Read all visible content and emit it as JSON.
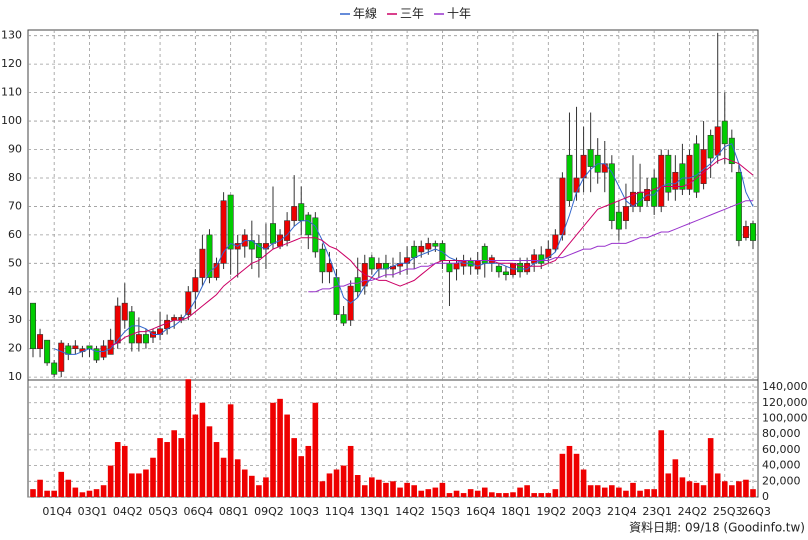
{
  "chart_data": {
    "type": "candlestick",
    "categories": [
      null,
      null,
      null,
      "01Q4",
      null,
      null,
      null,
      null,
      "03Q1",
      null,
      null,
      null,
      null,
      "04Q2",
      null,
      null,
      null,
      null,
      "05Q3",
      null,
      null,
      null,
      null,
      "06Q4",
      null,
      null,
      null,
      null,
      "08Q1",
      null,
      null,
      null,
      null,
      "09Q2",
      null,
      null,
      null,
      null,
      "10Q3",
      null,
      null,
      null,
      null,
      "11Q4",
      null,
      null,
      null,
      null,
      "13Q1",
      null,
      null,
      null,
      null,
      "14Q2",
      null,
      null,
      null,
      null,
      "15Q3",
      null,
      null,
      null,
      null,
      "16Q4",
      null,
      null,
      null,
      null,
      "18Q1",
      null,
      null,
      null,
      null,
      "19Q2",
      null,
      null,
      null,
      null,
      "20Q3",
      null,
      null,
      null,
      null,
      "21Q4",
      null,
      null,
      null,
      null,
      "23Q1",
      null,
      null,
      null,
      null,
      "24Q2",
      null,
      null,
      null,
      null,
      "25Q3",
      null,
      null,
      null,
      "26Q3"
    ],
    "open": [
      36,
      20,
      23,
      15,
      12,
      21,
      20,
      19,
      21,
      20,
      17,
      18,
      22,
      30,
      33,
      22,
      25,
      24,
      25,
      27,
      30,
      30,
      32,
      40,
      45,
      60,
      45,
      50,
      74,
      55,
      56,
      58,
      57,
      55,
      64,
      56,
      58,
      65,
      71,
      67,
      66,
      55,
      47,
      45,
      32,
      30,
      45,
      42,
      52,
      48,
      50,
      48,
      49,
      50,
      56,
      54,
      55,
      57,
      57,
      50,
      48,
      49,
      51,
      48,
      56,
      50,
      49,
      47,
      46,
      50,
      47,
      50,
      53,
      52,
      55,
      60,
      88,
      75,
      80,
      90,
      88,
      82,
      85,
      68,
      65,
      70,
      75,
      72,
      80,
      70,
      88,
      76,
      85,
      76,
      92,
      78,
      95,
      88,
      100,
      94,
      82,
      59,
      64
    ],
    "close": [
      20,
      25,
      15,
      11,
      22,
      18,
      21,
      20,
      20,
      16,
      21,
      23,
      35,
      36,
      22,
      25,
      22,
      26,
      27,
      30,
      31,
      31,
      40,
      45,
      55,
      45,
      50,
      72,
      55,
      57,
      60,
      55,
      52,
      57,
      57,
      60,
      65,
      70,
      65,
      60,
      54,
      47,
      50,
      32,
      29,
      42,
      40,
      50,
      48,
      50,
      48,
      49,
      50,
      52,
      52,
      56,
      57,
      56,
      51,
      47,
      50,
      51,
      49,
      51,
      50,
      52,
      47,
      46,
      50,
      47,
      50,
      53,
      50,
      55,
      60,
      80,
      72,
      80,
      88,
      84,
      82,
      85,
      65,
      62,
      70,
      75,
      70,
      76,
      70,
      88,
      75,
      82,
      76,
      88,
      75,
      90,
      87,
      98,
      92,
      85,
      58,
      63,
      58
    ],
    "high": [
      36,
      27,
      23,
      16,
      23,
      22,
      23,
      21,
      21,
      21,
      23,
      27,
      38,
      43,
      35,
      31,
      27,
      27,
      33,
      32,
      32,
      32,
      42,
      48,
      60,
      62,
      52,
      75,
      74,
      60,
      62,
      65,
      60,
      64,
      77,
      62,
      68,
      81,
      77,
      68,
      68,
      57,
      54,
      48,
      35,
      44,
      52,
      53,
      53,
      52,
      53,
      52,
      54,
      56,
      58,
      58,
      59,
      58,
      58,
      51,
      52,
      53,
      52,
      54,
      57,
      53,
      50,
      49,
      50,
      52,
      52,
      55,
      56,
      58,
      62,
      82,
      103,
      105,
      98,
      103,
      94,
      93,
      88,
      72,
      78,
      88,
      85,
      80,
      83,
      90,
      90,
      88,
      92,
      90,
      95,
      100,
      97,
      131,
      110,
      97,
      85,
      65,
      65
    ],
    "low": [
      17,
      17,
      14,
      10,
      10,
      16,
      18,
      17,
      17,
      15,
      16,
      18,
      20,
      27,
      19,
      19,
      20,
      22,
      23,
      25,
      27,
      29,
      30,
      34,
      42,
      43,
      44,
      48,
      46,
      45,
      52,
      48,
      45,
      48,
      55,
      55,
      56,
      63,
      60,
      55,
      52,
      43,
      43,
      30,
      28,
      28,
      38,
      39,
      46,
      45,
      45,
      45,
      46,
      46,
      48,
      52,
      53,
      54,
      48,
      35,
      44,
      46,
      46,
      46,
      45,
      47,
      45,
      44,
      45,
      45,
      46,
      47,
      48,
      50,
      54,
      58,
      70,
      72,
      75,
      75,
      78,
      75,
      62,
      58,
      62,
      68,
      68,
      70,
      67,
      68,
      72,
      72,
      74,
      74,
      73,
      76,
      80,
      85,
      85,
      82,
      56,
      58,
      55
    ],
    "up_color": "#ee0000",
    "down_color": "#00cc00",
    "series": [
      {
        "name": "年線",
        "color": "#3366cc",
        "values": [
          null,
          null,
          null,
          20,
          19,
          18,
          18,
          19,
          20,
          19,
          19,
          20,
          23,
          26,
          28,
          28,
          27,
          25,
          25,
          27,
          28,
          30,
          33,
          37,
          42,
          47,
          49,
          54,
          57,
          56,
          58,
          58,
          56,
          55,
          57,
          58,
          60,
          63,
          65,
          65,
          63,
          58,
          52,
          45,
          38,
          36,
          38,
          42,
          45,
          48,
          48,
          49,
          50,
          50,
          52,
          53,
          54,
          55,
          54,
          52,
          51,
          50,
          50,
          49,
          50,
          50,
          50,
          49,
          48,
          48,
          48,
          50,
          51,
          52,
          54,
          60,
          67,
          75,
          80,
          83,
          85,
          85,
          82,
          77,
          72,
          70,
          72,
          74,
          74,
          77,
          78,
          78,
          80,
          80,
          81,
          83,
          85,
          88,
          91,
          92,
          85,
          75,
          70
        ]
      },
      {
        "name": "三年",
        "color": "#cc0066",
        "values": [
          null,
          null,
          null,
          null,
          null,
          null,
          null,
          null,
          null,
          null,
          null,
          21,
          22,
          24,
          25,
          26,
          26,
          27,
          28,
          29,
          30,
          30,
          31,
          33,
          35,
          37,
          39,
          42,
          44,
          46,
          48,
          50,
          51,
          53,
          55,
          56,
          57,
          58,
          59,
          59,
          59,
          58,
          56,
          55,
          53,
          51,
          48,
          46,
          45,
          44,
          44,
          43,
          42,
          43,
          44,
          46,
          48,
          50,
          51,
          51,
          51,
          51,
          51,
          51,
          51,
          51,
          50,
          50,
          50,
          49,
          49,
          49,
          49,
          50,
          51,
          54,
          57,
          60,
          63,
          66,
          69,
          70,
          71,
          72,
          73,
          74,
          75,
          75,
          76,
          77,
          77,
          77,
          77,
          78,
          80,
          82,
          84,
          86,
          87,
          86,
          85,
          83,
          81
        ]
      },
      {
        "name": "十年",
        "color": "#9933cc",
        "values": [
          null,
          null,
          null,
          null,
          null,
          null,
          null,
          null,
          null,
          null,
          null,
          null,
          null,
          null,
          null,
          null,
          null,
          null,
          null,
          null,
          null,
          null,
          null,
          null,
          null,
          null,
          null,
          null,
          null,
          null,
          null,
          null,
          null,
          null,
          null,
          null,
          null,
          null,
          null,
          40,
          40,
          41,
          41,
          42,
          42,
          43,
          43,
          44,
          44,
          45,
          46,
          46,
          47,
          48,
          48,
          49,
          49,
          50,
          50,
          50,
          50,
          51,
          51,
          51,
          51,
          51,
          51,
          51,
          51,
          51,
          51,
          51,
          51,
          51,
          52,
          52,
          53,
          54,
          55,
          55,
          56,
          56,
          57,
          57,
          57,
          58,
          59,
          59,
          60,
          61,
          61,
          62,
          63,
          64,
          65,
          66,
          67,
          68,
          69,
          70,
          71,
          72,
          72
        ]
      }
    ],
    "volume": {
      "color": "#ee0000",
      "values": [
        10000,
        22000,
        8000,
        8000,
        32000,
        22000,
        12000,
        6000,
        8000,
        10000,
        15000,
        40000,
        70000,
        65000,
        30000,
        30000,
        35000,
        50000,
        75000,
        70000,
        85000,
        75000,
        150000,
        105000,
        120000,
        90000,
        70000,
        50000,
        118000,
        48000,
        35000,
        27000,
        15000,
        25000,
        120000,
        125000,
        105000,
        75000,
        52000,
        65000,
        120000,
        20000,
        30000,
        35000,
        40000,
        65000,
        28000,
        15000,
        25000,
        22000,
        18000,
        20000,
        12000,
        18000,
        15000,
        8000,
        10000,
        12000,
        18000,
        5000,
        8000,
        5000,
        10000,
        8000,
        12000,
        6000,
        5000,
        5000,
        6000,
        12000,
        15000,
        5000,
        5000,
        5000,
        10000,
        55000,
        65000,
        55000,
        35000,
        15000,
        15000,
        12000,
        15000,
        12000,
        8000,
        18000,
        8000,
        10000,
        10000,
        85000,
        30000,
        48000,
        25000,
        20000,
        18000,
        15000,
        75000,
        30000,
        20000,
        15000,
        20000,
        22000,
        10000
      ]
    },
    "ylim": [
      9,
      132
    ],
    "yticks": [
      10,
      20,
      30,
      40,
      50,
      60,
      70,
      80,
      90,
      100,
      110,
      120,
      130
    ],
    "y2lim": [
      0,
      149000
    ],
    "y2ticks": [
      0,
      {
        "value": 20000,
        "label": "20,000"
      },
      {
        "value": 40000,
        "label": "40,000"
      },
      {
        "value": 60000,
        "label": "60,000"
      },
      {
        "value": 80000,
        "label": "80,000"
      },
      {
        "value": 100000,
        "label": "100,000"
      },
      {
        "value": 120000,
        "label": "120,000"
      },
      {
        "value": 140000,
        "label": "140,000"
      }
    ],
    "grid": true,
    "legend": "top",
    "source": "資料日期: 09/18  (Goodinfo.tw)"
  }
}
